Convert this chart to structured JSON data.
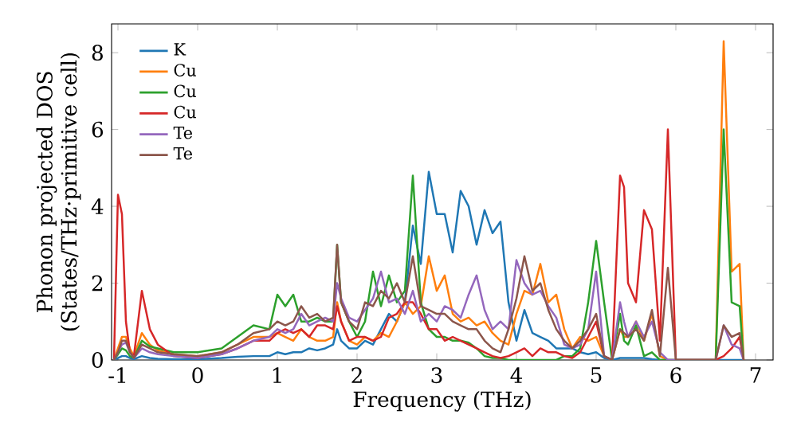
{
  "chart_data": {
    "type": "line",
    "xlabel": "Frequency (THz)",
    "ylabel": "Phonon projected DOS (States/THz·primitive cell)",
    "x": [
      -1.05,
      -1.0,
      -0.95,
      -0.9,
      -0.85,
      -0.8,
      -0.7,
      -0.6,
      -0.5,
      -0.3,
      0,
      0.3,
      0.5,
      0.7,
      0.9,
      1.0,
      1.1,
      1.2,
      1.3,
      1.4,
      1.5,
      1.6,
      1.7,
      1.75,
      1.8,
      1.9,
      2.0,
      2.1,
      2.2,
      2.3,
      2.4,
      2.5,
      2.6,
      2.7,
      2.8,
      2.9,
      3.0,
      3.1,
      3.2,
      3.3,
      3.4,
      3.5,
      3.6,
      3.7,
      3.8,
      3.9,
      4.0,
      4.1,
      4.2,
      4.3,
      4.4,
      4.5,
      4.6,
      4.7,
      4.8,
      4.9,
      5.0,
      5.1,
      5.2,
      5.3,
      5.35,
      5.4,
      5.5,
      5.6,
      5.7,
      5.8,
      5.9,
      6.0,
      6.5,
      6.6,
      6.7,
      6.8,
      6.85
    ],
    "series": [
      {
        "name": "K",
        "color": "#1f77b4",
        "values": [
          0,
          0.05,
          0.1,
          0.1,
          0.05,
          0.02,
          0.1,
          0.05,
          0.03,
          0.02,
          0.02,
          0.05,
          0.08,
          0.1,
          0.1,
          0.2,
          0.15,
          0.2,
          0.2,
          0.3,
          0.25,
          0.3,
          0.4,
          0.8,
          0.5,
          0.3,
          0.3,
          0.5,
          0.4,
          0.8,
          1.2,
          1.0,
          1.5,
          3.5,
          2.5,
          4.9,
          3.8,
          3.8,
          2.8,
          4.4,
          4.0,
          3.0,
          3.9,
          3.3,
          3.6,
          1.5,
          0.5,
          1.3,
          0.7,
          0.6,
          0.5,
          0.3,
          0.3,
          0.3,
          0.2,
          0.15,
          0.2,
          0.05,
          0,
          0.05,
          0.05,
          0.05,
          0.05,
          0.05,
          0.02,
          0,
          0,
          0,
          0,
          0,
          0,
          0,
          0
        ]
      },
      {
        "name": "Cu",
        "color": "#ff7f0e",
        "values": [
          0,
          0.3,
          0.6,
          0.6,
          0.3,
          0.1,
          0.7,
          0.4,
          0.25,
          0.15,
          0.1,
          0.2,
          0.4,
          0.6,
          0.6,
          0.7,
          0.6,
          0.5,
          0.8,
          0.6,
          0.5,
          0.5,
          0.6,
          1.5,
          1.0,
          0.5,
          0.4,
          0.6,
          0.5,
          0.7,
          0.6,
          1.0,
          1.5,
          1.2,
          1.4,
          2.7,
          1.8,
          2.2,
          1.2,
          1.0,
          1.1,
          0.9,
          1.0,
          0.7,
          0.5,
          0.4,
          1.2,
          1.8,
          1.7,
          2.5,
          1.5,
          1.7,
          0.8,
          0.3,
          0.6,
          0.5,
          0.6,
          0.1,
          0,
          0.8,
          0.6,
          0.6,
          1.0,
          0.5,
          1.2,
          0.1,
          0,
          0,
          0,
          8.3,
          2.3,
          2.5,
          0
        ]
      },
      {
        "name": "Cu",
        "color": "#2ca02c",
        "values": [
          0,
          0.15,
          0.3,
          0.25,
          0.1,
          0.05,
          0.5,
          0.35,
          0.3,
          0.2,
          0.2,
          0.3,
          0.6,
          0.9,
          0.8,
          1.7,
          1.4,
          1.7,
          1.0,
          1.0,
          1.1,
          1.0,
          1.0,
          3.0,
          1.5,
          1.0,
          0.6,
          1.0,
          2.3,
          1.4,
          2.2,
          1.5,
          1.8,
          4.8,
          1.5,
          0.8,
          0.6,
          0.6,
          0.5,
          0.5,
          0.45,
          0.3,
          0.1,
          0.05,
          0.05,
          0,
          0,
          0,
          0,
          0,
          0,
          0,
          0.1,
          0.1,
          0.3,
          1.5,
          3.1,
          1.5,
          0,
          1.2,
          0.5,
          0.4,
          0.9,
          0.1,
          0.2,
          0,
          0,
          0,
          0,
          6.0,
          1.5,
          1.4,
          0
        ]
      },
      {
        "name": "Cu",
        "color": "#d62728",
        "values": [
          0,
          4.3,
          3.8,
          1.0,
          0.2,
          0.1,
          1.8,
          0.8,
          0.4,
          0.1,
          0.05,
          0.15,
          0.3,
          0.5,
          0.5,
          0.7,
          0.8,
          0.7,
          0.8,
          0.6,
          0.9,
          0.9,
          0.8,
          1.4,
          1.0,
          0.5,
          0.6,
          0.6,
          0.5,
          0.6,
          1.1,
          1.2,
          1.5,
          1.5,
          1.2,
          0.8,
          0.8,
          0.5,
          0.6,
          0.5,
          0.4,
          0.3,
          0.2,
          0.1,
          0.05,
          0.1,
          0.2,
          0.3,
          0.1,
          0.3,
          0.2,
          0.2,
          0.1,
          0.05,
          0.2,
          0.6,
          1.0,
          0.1,
          0,
          4.8,
          4.5,
          2.0,
          1.5,
          3.9,
          3.4,
          0.5,
          6.0,
          0,
          0,
          0.1,
          0.3,
          0.6,
          0
        ]
      },
      {
        "name": "Te",
        "color": "#9467bd",
        "values": [
          0,
          0.2,
          0.4,
          0.45,
          0.2,
          0.05,
          0.3,
          0.2,
          0.15,
          0.1,
          0.05,
          0.15,
          0.3,
          0.5,
          0.6,
          0.8,
          0.7,
          0.8,
          1.2,
          0.9,
          1.0,
          1.1,
          1.0,
          2.0,
          1.6,
          1.1,
          1.0,
          1.3,
          1.6,
          2.3,
          1.5,
          1.6,
          1.2,
          1.8,
          1.0,
          1.2,
          1.0,
          1.4,
          1.3,
          1.1,
          1.7,
          2.2,
          1.3,
          0.8,
          1.0,
          0.8,
          2.6,
          2.0,
          1.7,
          1.8,
          1.4,
          1.1,
          0.4,
          0.3,
          0.4,
          0.8,
          2.3,
          0.1,
          0,
          1.5,
          1.0,
          0.6,
          1.0,
          0.6,
          1.0,
          0.2,
          0,
          0,
          0,
          0.9,
          0.4,
          0.3,
          0
        ]
      },
      {
        "name": "Te",
        "color": "#8c564b",
        "values": [
          0,
          0.2,
          0.5,
          0.5,
          0.2,
          0.05,
          0.4,
          0.3,
          0.2,
          0.15,
          0.1,
          0.2,
          0.4,
          0.7,
          0.8,
          1.0,
          0.9,
          1.0,
          1.4,
          1.1,
          1.2,
          1.0,
          1.1,
          3.0,
          1.5,
          1.0,
          0.8,
          1.5,
          1.4,
          1.8,
          1.6,
          2.0,
          1.5,
          2.7,
          1.4,
          1.3,
          1.2,
          1.2,
          1.0,
          0.9,
          0.8,
          0.8,
          0.5,
          0.3,
          0.2,
          0.8,
          1.6,
          2.7,
          1.8,
          2.0,
          1.3,
          0.8,
          0.5,
          0.3,
          0.5,
          0.8,
          1.2,
          0.1,
          0,
          0.8,
          0.7,
          0.6,
          0.8,
          0.5,
          1.3,
          0.1,
          2.4,
          0,
          0,
          0.9,
          0.6,
          0.7,
          0
        ]
      }
    ],
    "xlim": [
      -1.08,
      7.22
    ],
    "ylim": [
      0,
      8.75
    ],
    "xticks": [
      -1,
      0,
      1,
      2,
      3,
      4,
      5,
      6,
      7
    ],
    "yticks": [
      0,
      2,
      4,
      6,
      8
    ],
    "grid": false,
    "legend": "top left",
    "marker": "none",
    "line_style": "solid"
  }
}
